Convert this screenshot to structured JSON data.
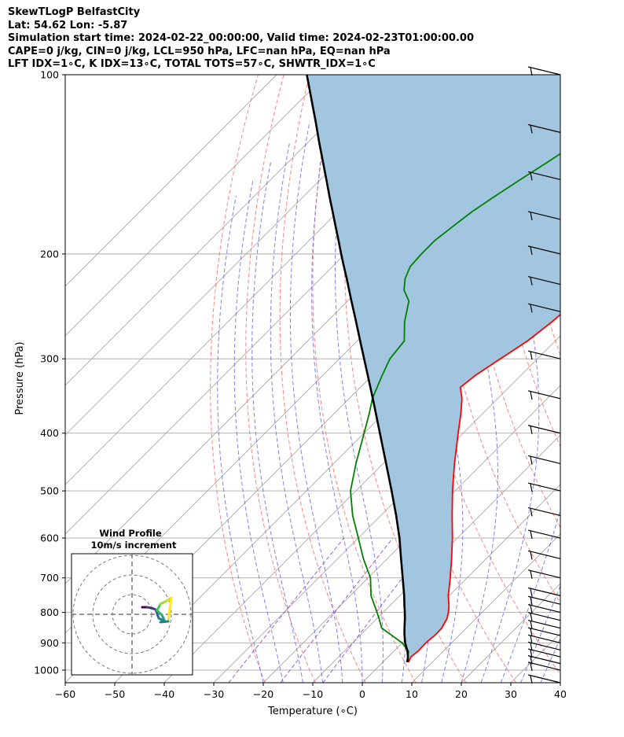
{
  "header": {
    "line1": "SkewTLogP BelfastCity",
    "line2": "Lat: 54.62   Lon: -5.87",
    "line3": "Simulation start time: 2024-02-22_00:00:00, Valid time: 2024-02-23T01:00:00.00",
    "line4": "CAPE=0 j/kg, CIN=0 j/kg, LCL=950 hPa, LFC=nan hPa, EQ=nan hPa",
    "line5": "LFT IDX=1∘C, K IDX=13∘C, TOTAL TOTS=57∘C, SHWTR_IDX=1∘C"
  },
  "chart_data": {
    "type": "line",
    "subtype": "skew-t log-p",
    "xlabel": "Temperature (∘C)",
    "ylabel": "Pressure (hPa)",
    "x_ticks": [
      "−60",
      "−50",
      "−40",
      "−30",
      "−20",
      "−10",
      "0",
      "10",
      "20",
      "30",
      "40"
    ],
    "y_ticks": [
      "100",
      "200",
      "300",
      "400",
      "500",
      "600",
      "700",
      "800",
      "900",
      "1000"
    ],
    "xlim": [
      -60,
      40
    ],
    "ylim": [
      1050,
      100
    ],
    "y_scale": "log",
    "grid": true,
    "colors": {
      "temperature": "#ff0000",
      "dewpoint": "#008000",
      "parcel": "#000000",
      "shade": "#a3c6e0",
      "dry_adiabat": "#ff6f6f",
      "moist_adiabat": "#6b6bef",
      "mixing_ratio": "#9a4ac8",
      "isotherm": "#a8a8a8"
    },
    "series": [
      {
        "key": "temperature",
        "pressure": [
          970,
          950,
          930,
          900,
          870,
          850,
          820,
          800,
          780,
          750,
          700,
          650,
          600,
          550,
          500,
          450,
          400,
          370,
          350,
          335,
          320,
          300,
          280,
          260,
          250,
          240,
          230,
          220,
          210,
          200,
          190,
          180,
          170,
          160,
          150,
          140,
          130,
          120,
          110,
          100
        ],
        "temp": [
          5.2,
          4.6,
          4.9,
          4.8,
          5.1,
          5.0,
          4.2,
          3.2,
          2.0,
          -0.2,
          -3.4,
          -7.0,
          -11.0,
          -15.6,
          -20.5,
          -25.6,
          -31.0,
          -34.5,
          -37.2,
          -39.8,
          -39.2,
          -37.5,
          -35.6,
          -34.5,
          -34.2,
          -33.6,
          -33.1,
          -33.2,
          -33.6,
          -34.2,
          -34.7,
          -35.0,
          -35.3,
          -37.1,
          -39.0,
          -39.4,
          -39.2,
          -38.6,
          -38.0,
          -37.5
        ]
      },
      {
        "key": "dewpoint",
        "pressure": [
          970,
          950,
          930,
          900,
          870,
          850,
          820,
          800,
          780,
          750,
          700,
          650,
          600,
          550,
          500,
          450,
          400,
          370,
          350,
          320,
          300,
          280,
          260,
          240,
          230,
          220,
          210,
          200,
          190,
          180,
          170,
          160,
          150,
          140,
          130,
          120,
          110,
          100
        ],
        "temp": [
          4.8,
          4.0,
          3.0,
          0.0,
          -4.2,
          -7.1,
          -9.5,
          -11.2,
          -13.0,
          -15.8,
          -19.5,
          -24.8,
          -30.0,
          -35.7,
          -41.1,
          -45.5,
          -50.0,
          -53.0,
          -55.3,
          -58.0,
          -59.8,
          -60.5,
          -64.3,
          -67.6,
          -70.8,
          -72.9,
          -74.3,
          -74.6,
          -74.6,
          -73.8,
          -72.9,
          -71.4,
          -69.6,
          -67.6,
          -65.6,
          -63.6,
          -61.3,
          -58.8
        ]
      },
      {
        "key": "parcel",
        "pressure": [
          970,
          950,
          930,
          900,
          870,
          850,
          820,
          800,
          780,
          750,
          700,
          650,
          600,
          550,
          500,
          450,
          400,
          350,
          320,
          300,
          280,
          260,
          250,
          240,
          230,
          220,
          210,
          200,
          190,
          180,
          170,
          160,
          150,
          140,
          130,
          120,
          110,
          100
        ],
        "temp": [
          5.0,
          4.0,
          2.8,
          0.6,
          -1.3,
          -2.5,
          -4.3,
          -5.6,
          -7.0,
          -9.1,
          -13.0,
          -17.2,
          -21.7,
          -26.9,
          -32.8,
          -39.4,
          -46.8,
          -55.2,
          -60.9,
          -65.0,
          -69.4,
          -74.1,
          -76.6,
          -79.2,
          -81.9,
          -84.7,
          -87.7,
          -90.8,
          -94.0,
          -97.4,
          -101.0,
          -104.8,
          -108.8,
          -113.1,
          -117.7,
          -122.6,
          -128.0,
          -133.9
        ]
      }
    ],
    "wind_barbs_label": "",
    "inset": {
      "title_line1": "Wind Profile",
      "title_line2": "10m/s increment",
      "colormap": "viridis"
    }
  }
}
